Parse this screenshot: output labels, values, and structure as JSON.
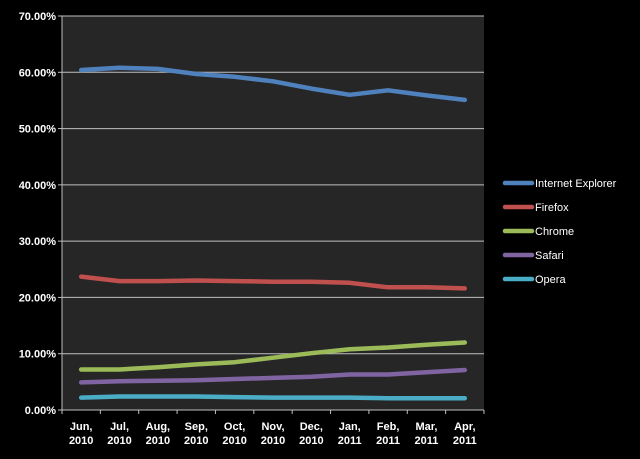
{
  "chart_data": {
    "type": "line",
    "title": "",
    "xlabel": "",
    "ylabel": "",
    "ylim": [
      0,
      70
    ],
    "y_ticks": [
      0,
      10,
      20,
      30,
      40,
      50,
      60,
      70
    ],
    "y_tick_labels": [
      "0.00%",
      "10.00%",
      "20.00%",
      "30.00%",
      "40.00%",
      "50.00%",
      "60.00%",
      "70.00%"
    ],
    "categories": [
      {
        "month": "Jun,",
        "year": "2010"
      },
      {
        "month": "Jul,",
        "year": "2010"
      },
      {
        "month": "Aug,",
        "year": "2010"
      },
      {
        "month": "Sep,",
        "year": "2010"
      },
      {
        "month": "Oct,",
        "year": "2010"
      },
      {
        "month": "Nov,",
        "year": "2010"
      },
      {
        "month": "Dec,",
        "year": "2010"
      },
      {
        "month": "Jan,",
        "year": "2011"
      },
      {
        "month": "Feb,",
        "year": "2011"
      },
      {
        "month": "Mar,",
        "year": "2011"
      },
      {
        "month": "Apr,",
        "year": "2011"
      }
    ],
    "grid": true,
    "legend_position": "right",
    "series": [
      {
        "name": "Internet Explorer",
        "color": "#4f81bd",
        "values": [
          60.4,
          60.8,
          60.6,
          59.7,
          59.2,
          58.4,
          57.1,
          56.0,
          56.8,
          55.9,
          55.1
        ]
      },
      {
        "name": "Firefox",
        "color": "#c0504d",
        "values": [
          23.7,
          22.9,
          22.9,
          23.0,
          22.9,
          22.8,
          22.8,
          22.6,
          21.8,
          21.8,
          21.6
        ]
      },
      {
        "name": "Chrome",
        "color": "#9bbb59",
        "values": [
          7.2,
          7.2,
          7.6,
          8.1,
          8.5,
          9.3,
          10.1,
          10.8,
          11.1,
          11.6,
          12.0
        ]
      },
      {
        "name": "Safari",
        "color": "#8064a2",
        "values": [
          4.9,
          5.1,
          5.2,
          5.3,
          5.5,
          5.7,
          5.9,
          6.3,
          6.3,
          6.7,
          7.1
        ]
      },
      {
        "name": "Opera",
        "color": "#4bacc6",
        "values": [
          2.2,
          2.4,
          2.4,
          2.4,
          2.3,
          2.2,
          2.2,
          2.2,
          2.1,
          2.1,
          2.1
        ]
      }
    ]
  },
  "colors": {
    "background": "#000000",
    "plot_area": "#262626",
    "gridline": "#bfbfbf",
    "axis": "#bfbfbf",
    "text": "#ffffff"
  }
}
